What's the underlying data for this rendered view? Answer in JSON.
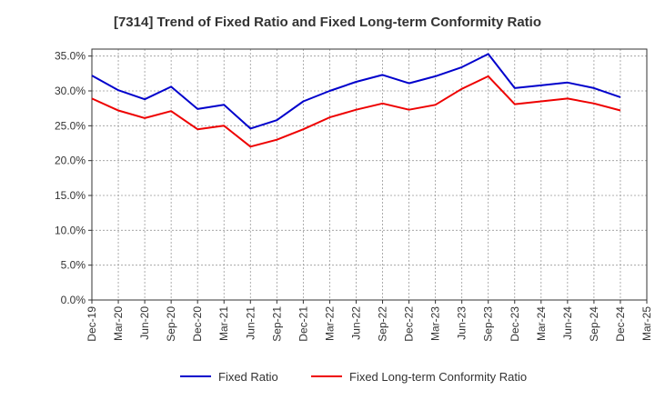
{
  "chart_data": {
    "type": "line",
    "title": "[7314]  Trend of Fixed Ratio and Fixed Long-term Conformity Ratio",
    "xlabel": "",
    "ylabel": "",
    "x_ticks": [
      "Dec-19",
      "Mar-20",
      "Jun-20",
      "Sep-20",
      "Dec-20",
      "Mar-21",
      "Jun-21",
      "Sep-21",
      "Dec-21",
      "Mar-22",
      "Jun-22",
      "Sep-22",
      "Dec-22",
      "Mar-23",
      "Jun-23",
      "Sep-23",
      "Dec-23",
      "Mar-24",
      "Jun-24",
      "Sep-24",
      "Dec-24",
      "Mar-25"
    ],
    "y_ticks": [
      "0.0%",
      "5.0%",
      "10.0%",
      "15.0%",
      "20.0%",
      "25.0%",
      "30.0%",
      "35.0%"
    ],
    "ylim": [
      0,
      36
    ],
    "grid": true,
    "legend_position": "bottom",
    "x": [
      "Dec-19",
      "Mar-20",
      "Jun-20",
      "Sep-20",
      "Dec-20",
      "Mar-21",
      "Jun-21",
      "Sep-21",
      "Dec-21",
      "Mar-22",
      "Jun-22",
      "Sep-22",
      "Dec-22",
      "Mar-23",
      "Jun-23",
      "Sep-23",
      "Dec-23",
      "Mar-24",
      "Jun-24",
      "Sep-24",
      "Dec-24"
    ],
    "series": [
      {
        "name": "Fixed Ratio",
        "color": "#0000cc",
        "values": [
          32.2,
          30.1,
          28.8,
          30.6,
          27.4,
          28.0,
          24.6,
          25.8,
          28.5,
          30.0,
          31.3,
          32.3,
          31.1,
          32.1,
          33.4,
          35.3,
          30.4,
          30.8,
          31.2,
          30.4,
          29.1
        ]
      },
      {
        "name": "Fixed Long-term Conformity Ratio",
        "color": "#ee0000",
        "values": [
          28.9,
          27.2,
          26.1,
          27.1,
          24.5,
          25.0,
          22.0,
          23.0,
          24.5,
          26.2,
          27.3,
          28.2,
          27.3,
          28.0,
          30.3,
          32.1,
          28.1,
          28.5,
          28.9,
          28.2,
          27.2
        ]
      }
    ]
  }
}
